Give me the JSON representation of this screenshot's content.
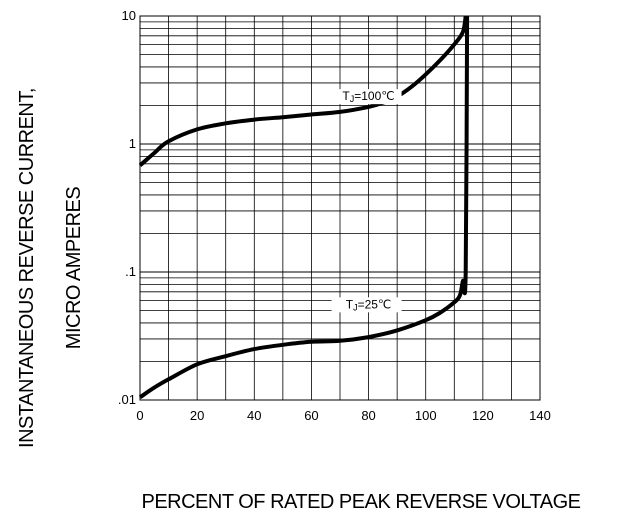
{
  "chart_data": {
    "type": "line",
    "xlabel": "PERCENT OF RATED PEAK REVERSE VOLTAGE",
    "ylabel_line1": "INSTANTANEOUS REVERSE CURRENT,",
    "ylabel_line2": "MICRO AMPERES",
    "xlim": [
      0,
      140
    ],
    "ylim": [
      0.01,
      10
    ],
    "yscale": "log",
    "grid": true,
    "x_ticks": [
      0,
      20,
      40,
      60,
      80,
      100,
      120,
      140
    ],
    "x_tick_labels": [
      "0",
      "20",
      "40",
      "60",
      "80",
      "100",
      "120",
      "140"
    ],
    "y_ticks": [
      0.01,
      0.1,
      1,
      10
    ],
    "y_tick_labels": [
      ".01",
      ".1",
      "1",
      "10"
    ],
    "series": [
      {
        "name": "TJ=100℃",
        "label_sub_prefix": "T",
        "label_sub": "J",
        "label_rest": "=100℃",
        "label_at": [
          80,
          2.2
        ],
        "x": [
          0,
          5,
          10,
          20,
          30,
          40,
          50,
          60,
          70,
          80,
          85,
          90,
          95,
          100,
          105,
          110,
          113,
          114
        ],
        "y": [
          0.68,
          0.85,
          1.05,
          1.3,
          1.45,
          1.55,
          1.62,
          1.7,
          1.78,
          1.95,
          2.1,
          2.35,
          2.8,
          3.5,
          4.5,
          6.0,
          7.5,
          10
        ]
      },
      {
        "name": "TJ=25℃",
        "label_sub_prefix": "T",
        "label_sub": "J",
        "label_rest": "=25℃",
        "label_at": [
          80,
          0.052
        ],
        "x": [
          0,
          5,
          10,
          20,
          30,
          40,
          50,
          60,
          70,
          80,
          90,
          100,
          105,
          110,
          112,
          113,
          114,
          114.5
        ],
        "y": [
          0.0105,
          0.0125,
          0.0145,
          0.019,
          0.022,
          0.025,
          0.027,
          0.0285,
          0.029,
          0.031,
          0.035,
          0.042,
          0.048,
          0.058,
          0.066,
          0.085,
          0.1,
          10
        ]
      }
    ]
  }
}
